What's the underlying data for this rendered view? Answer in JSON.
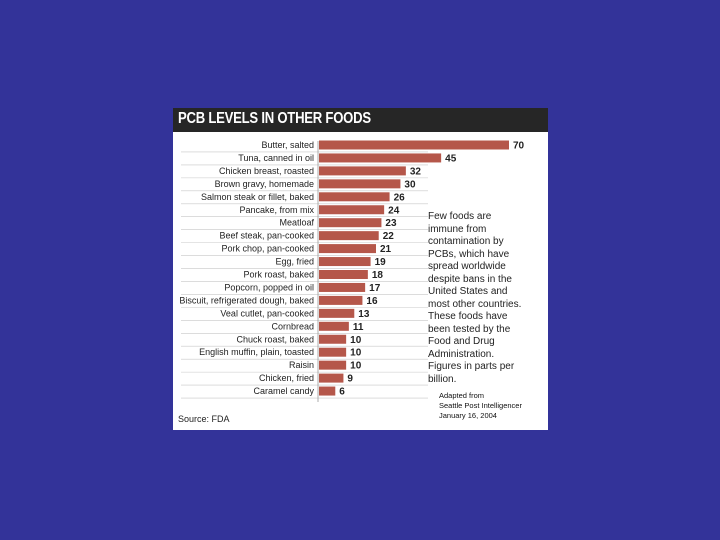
{
  "chart_data": {
    "type": "bar",
    "orientation": "horizontal",
    "title": "PCB LEVELS IN OTHER FOODS",
    "categories": [
      "Butter, salted",
      "Tuna, canned in oil",
      "Chicken breast, roasted",
      "Brown gravy, homemade",
      "Salmon steak or fillet, baked",
      "Pancake, from mix",
      "Meatloaf",
      "Beef steak, pan-cooked",
      "Pork chop, pan-cooked",
      "Egg, fried",
      "Pork roast, baked",
      "Popcorn, popped in oil",
      "Biscuit, refrigerated dough, baked",
      "Veal cutlet, pan-cooked",
      "Cornbread",
      "Chuck roast, baked",
      "English muffin, plain, toasted",
      "Raisin",
      "Chicken, fried",
      "Caramel candy"
    ],
    "values": [
      70,
      45,
      32,
      30,
      26,
      24,
      23,
      22,
      21,
      19,
      18,
      17,
      16,
      13,
      11,
      10,
      10,
      10,
      9,
      6
    ],
    "bar_color": "#b5574a",
    "annotation": "Few foods are immune from contamination by PCBs, which have spread worldwide despite bans in the United States and most other countries. These foods have been tested by the Food and Drug Administration. Figures in parts per billion.",
    "source": "Source: FDA"
  },
  "credit": {
    "line1": "Adapted from",
    "line2": "Seattle Post Intelligencer",
    "line3": "January 16, 2004"
  },
  "colors": {
    "background": "#333399",
    "panel": "#ffffff",
    "title_bar": "#262626"
  }
}
